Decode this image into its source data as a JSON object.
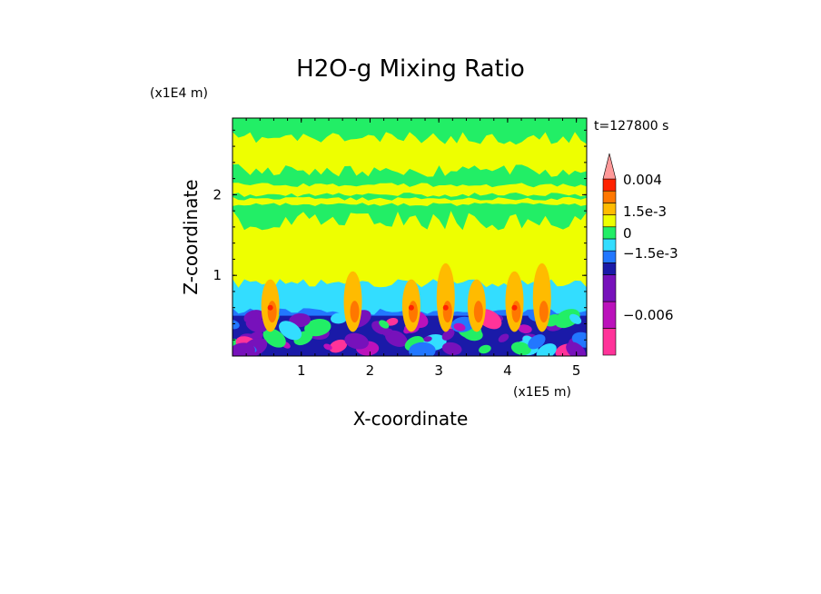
{
  "chart_data": {
    "type": "heatmap",
    "title": "H2O-g Mixing Ratio",
    "xlabel": "X-coordinate",
    "ylabel": "Z-coordinate",
    "x_unit": "(x1E5 m)",
    "y_unit": "(x1E4 m)",
    "time_label": "t=127800 s",
    "xlim": [
      0,
      5.15
    ],
    "ylim": [
      0,
      2.95
    ],
    "x_ticks": [
      "1",
      "2",
      "3",
      "4",
      "5"
    ],
    "y_ticks": [
      "1",
      "2"
    ],
    "colorbar": {
      "levels": [
        {
          "color": "#ff3399"
        },
        {
          "color": "#bb11bb"
        },
        {
          "color": "#7711bb"
        },
        {
          "color": "#1a1aa8"
        },
        {
          "color": "#2277ff"
        },
        {
          "color": "#33ddff"
        },
        {
          "color": "#22ee66"
        },
        {
          "color": "#eeff00"
        },
        {
          "color": "#ffbb00"
        },
        {
          "color": "#ff7700"
        },
        {
          "color": "#ff2200"
        },
        {
          "color": "#ff9999"
        }
      ],
      "labels": [
        "0.004",
        "1.5e-3",
        "0",
        "−1.5e-3",
        "−0.006"
      ],
      "extend": "max"
    },
    "field_description_regions": [
      {
        "zmin": 0.0,
        "zmax": 0.35,
        "dominant": "#1a1aa8"
      },
      {
        "zmin": 0.35,
        "zmax": 0.65,
        "dominant": "#33ddff"
      },
      {
        "zmin": 0.65,
        "zmax": 1.7,
        "dominant": "#eeff00"
      },
      {
        "zmin": 1.7,
        "zmax": 2.05,
        "dominant": "#22ee66"
      },
      {
        "zmin": 2.05,
        "zmax": 2.3,
        "dominant": "#eeff00"
      },
      {
        "zmin": 2.3,
        "zmax": 2.95,
        "dominant": "#22ee66"
      }
    ]
  }
}
